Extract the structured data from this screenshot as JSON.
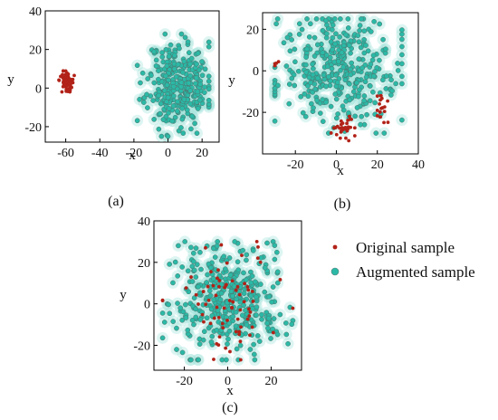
{
  "legend": {
    "original_label": "Original sample",
    "augmented_label": "Augmented sample",
    "original_color": "#b22218",
    "augmented_color": "#2bb9a6",
    "augmented_halo": "#9fe3da"
  },
  "chart_data": [
    {
      "type": "scatter",
      "caption": "(a)",
      "xlabel": "x",
      "ylabel": "y",
      "xlim": [
        -72,
        30
      ],
      "ylim": [
        -28,
        40
      ],
      "xticks": [
        -60,
        -40,
        -20,
        0,
        20
      ],
      "yticks": [
        -20,
        0,
        20,
        40
      ],
      "series": [
        {
          "kind": "augmented",
          "cluster": {
            "cx": 6,
            "cy": 2,
            "sx": 9,
            "sy": 11,
            "xr": [
              -18,
              24
            ],
            "yr": [
              -25,
              28
            ],
            "n": 320,
            "seed": 11
          }
        },
        {
          "kind": "original",
          "cluster": {
            "cx": -59,
            "cy": 3,
            "sx": 2.2,
            "sy": 3,
            "xr": [
              -64,
              -55
            ],
            "yr": [
              -2,
              10
            ],
            "n": 70,
            "seed": 12
          }
        }
      ]
    },
    {
      "type": "scatter",
      "caption": "(b)",
      "xlabel": "x",
      "ylabel": "y",
      "xlim": [
        -36,
        40
      ],
      "ylim": [
        -40,
        28
      ],
      "xticks": [
        -20,
        0,
        20,
        40
      ],
      "yticks": [
        -20,
        0,
        20
      ],
      "series": [
        {
          "kind": "augmented",
          "cluster": {
            "cx": 2,
            "cy": 0,
            "sx": 15,
            "sy": 13,
            "xr": [
              -30,
              32
            ],
            "yr": [
              -30,
              25
            ],
            "n": 360,
            "seed": 21
          }
        },
        {
          "kind": "original",
          "cluster": {
            "cx": 3,
            "cy": -28,
            "sx": 3,
            "sy": 3,
            "xr": [
              -3,
              9
            ],
            "yr": [
              -34,
              -22
            ],
            "n": 30,
            "seed": 22
          }
        },
        {
          "kind": "original",
          "cluster": {
            "cx": 23,
            "cy": -18,
            "sx": 1.5,
            "sy": 4,
            "xr": [
              20,
              27
            ],
            "yr": [
              -26,
              -12
            ],
            "n": 18,
            "seed": 23
          }
        },
        {
          "kind": "original",
          "cluster": {
            "cx": -29,
            "cy": 4,
            "sx": 1,
            "sy": 1,
            "xr": [
              -30,
              -28
            ],
            "yr": [
              2,
              6
            ],
            "n": 4,
            "seed": 24
          }
        }
      ]
    },
    {
      "type": "scatter",
      "caption": "(c)",
      "xlabel": "x",
      "ylabel": "y",
      "xlim": [
        -34,
        34
      ],
      "ylim": [
        -32,
        40
      ],
      "xticks": [
        -20,
        0,
        20
      ],
      "yticks": [
        -20,
        0,
        20,
        40
      ],
      "series": [
        {
          "kind": "augmented",
          "cluster": {
            "cx": 0,
            "cy": 2,
            "sx": 13,
            "sy": 13,
            "xr": [
              -30,
              30
            ],
            "yr": [
              -27,
              30
            ],
            "n": 380,
            "seed": 31
          }
        },
        {
          "kind": "original",
          "cluster": {
            "cx": 0,
            "cy": 2,
            "sx": 13,
            "sy": 13,
            "xr": [
              -30,
              30
            ],
            "yr": [
              -27,
              30
            ],
            "n": 75,
            "seed": 32
          }
        }
      ]
    }
  ]
}
